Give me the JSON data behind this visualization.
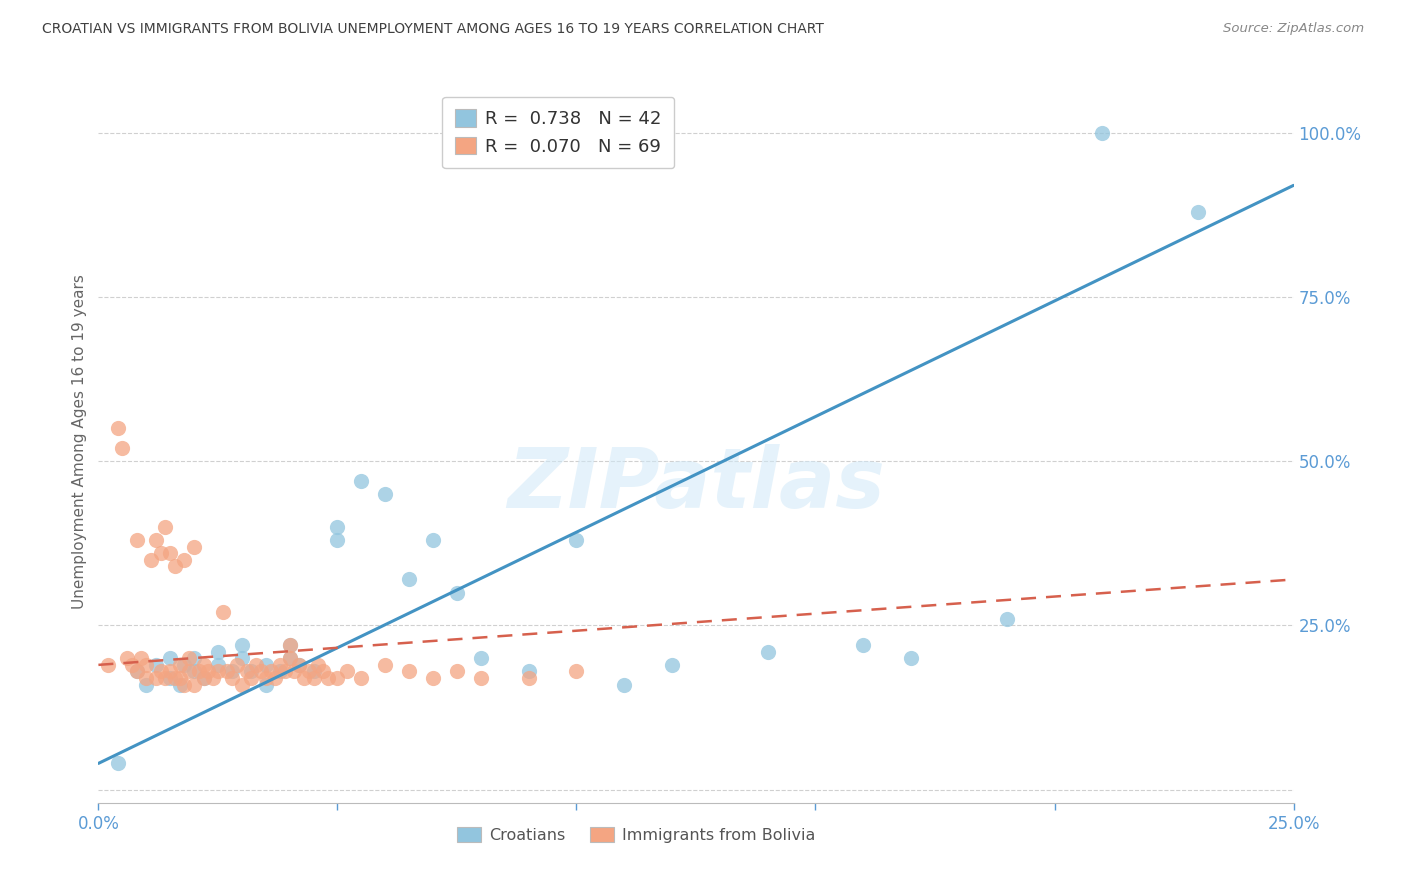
{
  "title": "CROATIAN VS IMMIGRANTS FROM BOLIVIA UNEMPLOYMENT AMONG AGES 16 TO 19 YEARS CORRELATION CHART",
  "source": "Source: ZipAtlas.com",
  "ylabel_label": "Unemployment Among Ages 16 to 19 years",
  "x_min": 0.0,
  "x_max": 0.25,
  "y_min": -0.02,
  "y_max": 1.08,
  "croatian_color": "#92c5de",
  "bolivia_color": "#f4a582",
  "trend_croatian_color": "#4393c3",
  "trend_bolivia_color": "#d6604d",
  "watermark": "ZIPatlas",
  "legend_croatian_R": "0.738",
  "legend_croatian_N": "42",
  "legend_bolivia_R": "0.070",
  "legend_bolivia_N": "69",
  "croatian_scatter_x": [
    0.004,
    0.008,
    0.01,
    0.012,
    0.015,
    0.015,
    0.017,
    0.018,
    0.02,
    0.02,
    0.022,
    0.025,
    0.025,
    0.028,
    0.03,
    0.03,
    0.032,
    0.035,
    0.035,
    0.038,
    0.04,
    0.04,
    0.042,
    0.045,
    0.05,
    0.05,
    0.055,
    0.06,
    0.065,
    0.07,
    0.075,
    0.08,
    0.09,
    0.1,
    0.11,
    0.12,
    0.14,
    0.16,
    0.17,
    0.19,
    0.21,
    0.23
  ],
  "croatian_scatter_y": [
    0.04,
    0.18,
    0.16,
    0.19,
    0.17,
    0.2,
    0.16,
    0.19,
    0.18,
    0.2,
    0.17,
    0.19,
    0.21,
    0.18,
    0.2,
    0.22,
    0.18,
    0.16,
    0.19,
    0.18,
    0.2,
    0.22,
    0.19,
    0.18,
    0.38,
    0.4,
    0.47,
    0.45,
    0.32,
    0.38,
    0.3,
    0.2,
    0.18,
    0.38,
    0.16,
    0.19,
    0.21,
    0.22,
    0.2,
    0.26,
    1.0,
    0.88
  ],
  "bolivia_scatter_x": [
    0.002,
    0.004,
    0.005,
    0.006,
    0.007,
    0.008,
    0.008,
    0.009,
    0.01,
    0.01,
    0.011,
    0.012,
    0.012,
    0.013,
    0.013,
    0.014,
    0.014,
    0.015,
    0.015,
    0.016,
    0.016,
    0.017,
    0.017,
    0.018,
    0.018,
    0.019,
    0.019,
    0.02,
    0.02,
    0.021,
    0.022,
    0.022,
    0.023,
    0.024,
    0.025,
    0.026,
    0.027,
    0.028,
    0.029,
    0.03,
    0.031,
    0.032,
    0.033,
    0.034,
    0.035,
    0.036,
    0.037,
    0.038,
    0.039,
    0.04,
    0.04,
    0.041,
    0.042,
    0.043,
    0.044,
    0.045,
    0.046,
    0.047,
    0.048,
    0.05,
    0.052,
    0.055,
    0.06,
    0.065,
    0.07,
    0.075,
    0.08,
    0.09,
    0.1
  ],
  "bolivia_scatter_y": [
    0.19,
    0.55,
    0.52,
    0.2,
    0.19,
    0.18,
    0.38,
    0.2,
    0.17,
    0.19,
    0.35,
    0.17,
    0.38,
    0.18,
    0.36,
    0.17,
    0.4,
    0.18,
    0.36,
    0.17,
    0.34,
    0.17,
    0.19,
    0.16,
    0.35,
    0.18,
    0.2,
    0.16,
    0.37,
    0.18,
    0.17,
    0.19,
    0.18,
    0.17,
    0.18,
    0.27,
    0.18,
    0.17,
    0.19,
    0.16,
    0.18,
    0.17,
    0.19,
    0.18,
    0.17,
    0.18,
    0.17,
    0.19,
    0.18,
    0.2,
    0.22,
    0.18,
    0.19,
    0.17,
    0.18,
    0.17,
    0.19,
    0.18,
    0.17,
    0.17,
    0.18,
    0.17,
    0.19,
    0.18,
    0.17,
    0.18,
    0.17,
    0.17,
    0.18
  ],
  "croatian_trend_x": [
    0.0,
    0.25
  ],
  "croatian_trend_y": [
    0.04,
    0.92
  ],
  "bolivia_trend_x": [
    0.0,
    0.25
  ],
  "bolivia_trend_y": [
    0.19,
    0.32
  ],
  "background_color": "#ffffff",
  "grid_color": "#d0d0d0",
  "tick_color": "#5b9bd5",
  "title_color": "#404040"
}
